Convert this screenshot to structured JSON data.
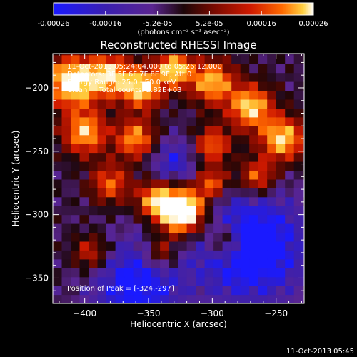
{
  "chart_data": {
    "type": "heatmap",
    "title": "Reconstructed RHESSI Image",
    "xlabel": "Heliocentric X (arcsec)",
    "ylabel": "Heliocentric Y (arcsec)",
    "xlim": [
      -425,
      -228
    ],
    "ylim": [
      -370,
      -173
    ],
    "xticks": [
      -400,
      -350,
      -300,
      -250
    ],
    "yticks": [
      -200,
      -250,
      -300,
      -350
    ],
    "colorbar": {
      "range": [
        -0.00026,
        0.00026
      ],
      "ticks": [
        "-0.00026",
        "-0.00016",
        "-5.2e-05",
        "5.2e-05",
        "0.00016",
        "0.00026"
      ],
      "unit_label": "(photons cm⁻² s⁻¹ asec⁻²)",
      "colormap": [
        "#1a1aff",
        "#3a1fb0",
        "#5a2590",
        "#1c0608",
        "#7a0a00",
        "#d01a00",
        "#ff6a00",
        "#ffd040",
        "#ffffff"
      ]
    },
    "annotations": [
      "11-Oct-2013 05:24:04.000 to 05:26:12.000",
      "Detectors: 3F 5F 6F 7F 8F 9F, Att 0",
      "Energy Range: 25.0 - 50.0 keV",
      "Clean     Total counts: 2.82E+03"
    ],
    "peak_label": "Position of Peak = [-324,-297]",
    "peak": {
      "x": -324,
      "y": -297
    },
    "timestamp": "11-Oct-2013 05:45"
  }
}
